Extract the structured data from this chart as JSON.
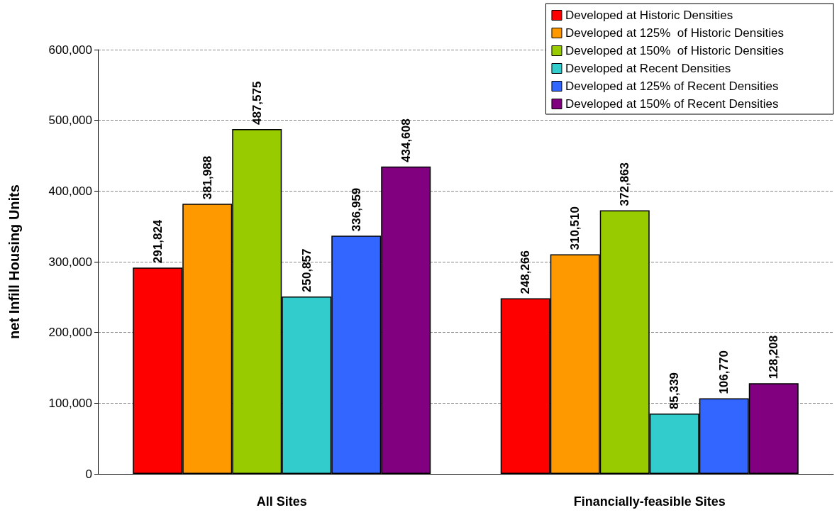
{
  "chart_data": {
    "type": "bar",
    "ylabel": "net Infill Housing Units",
    "categories": [
      "All Sites",
      "Financially-feasible Sites"
    ],
    "series": [
      {
        "name": "Developed at Historic Densities",
        "color": "#ff0000",
        "values": [
          291824,
          248266
        ],
        "value_labels": [
          "291,824",
          "248,266"
        ]
      },
      {
        "name": "Developed at 125%  of Historic Densities",
        "color": "#ff9900",
        "values": [
          381988,
          310510
        ],
        "value_labels": [
          "381,988",
          "310,510"
        ]
      },
      {
        "name": "Developed at 150%  of Historic Densities",
        "color": "#99cc00",
        "values": [
          487575,
          372863
        ],
        "value_labels": [
          "487,575",
          "372,863"
        ]
      },
      {
        "name": "Developed at Recent Densities",
        "color": "#33cccc",
        "values": [
          250857,
          85339
        ],
        "value_labels": [
          "250,857",
          "85,339"
        ]
      },
      {
        "name": "Developed at 125% of Recent Densities",
        "color": "#3366ff",
        "values": [
          336959,
          106770
        ],
        "value_labels": [
          "336,959",
          "106,770"
        ]
      },
      {
        "name": "Developed at 150% of Recent Densities",
        "color": "#800080",
        "values": [
          434608,
          128208
        ],
        "value_labels": [
          "434,608",
          "128,208"
        ]
      }
    ],
    "ylim": [
      0,
      600000
    ],
    "yticks": [
      {
        "value": 0,
        "label": "0"
      },
      {
        "value": 100000,
        "label": "100,000"
      },
      {
        "value": 200000,
        "label": "200,000"
      },
      {
        "value": 300000,
        "label": "300,000"
      },
      {
        "value": 400000,
        "label": "400,000"
      },
      {
        "value": 500000,
        "label": "500,000"
      },
      {
        "value": 600000,
        "label": "600,000"
      }
    ],
    "grid": "y",
    "legend": "top right"
  }
}
